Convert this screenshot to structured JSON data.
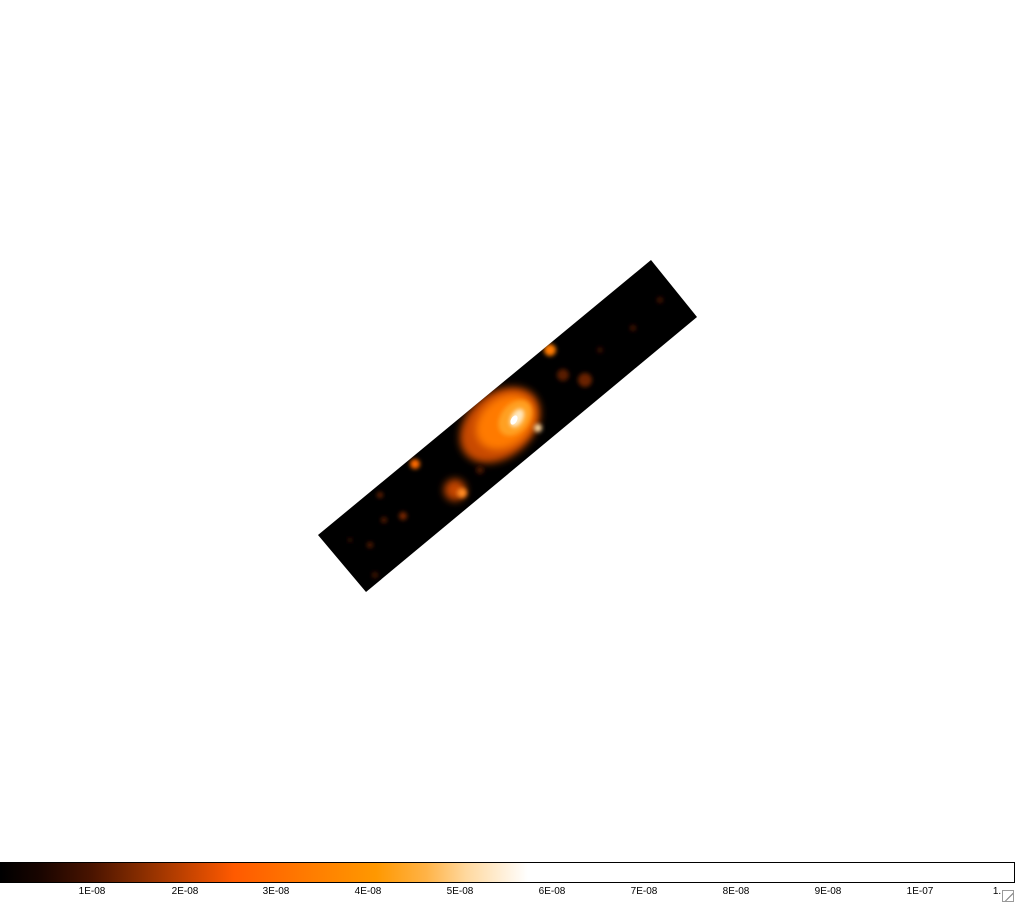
{
  "image": {
    "colormap": "heat",
    "stripe_color": "#000000",
    "background_color": "#ffffff"
  },
  "colorbar": {
    "labels": [
      "1E-08",
      "2E-08",
      "3E-08",
      "4E-08",
      "5E-08",
      "6E-08",
      "7E-08",
      "8E-08",
      "9E-08",
      "1E-07",
      "1."
    ]
  }
}
